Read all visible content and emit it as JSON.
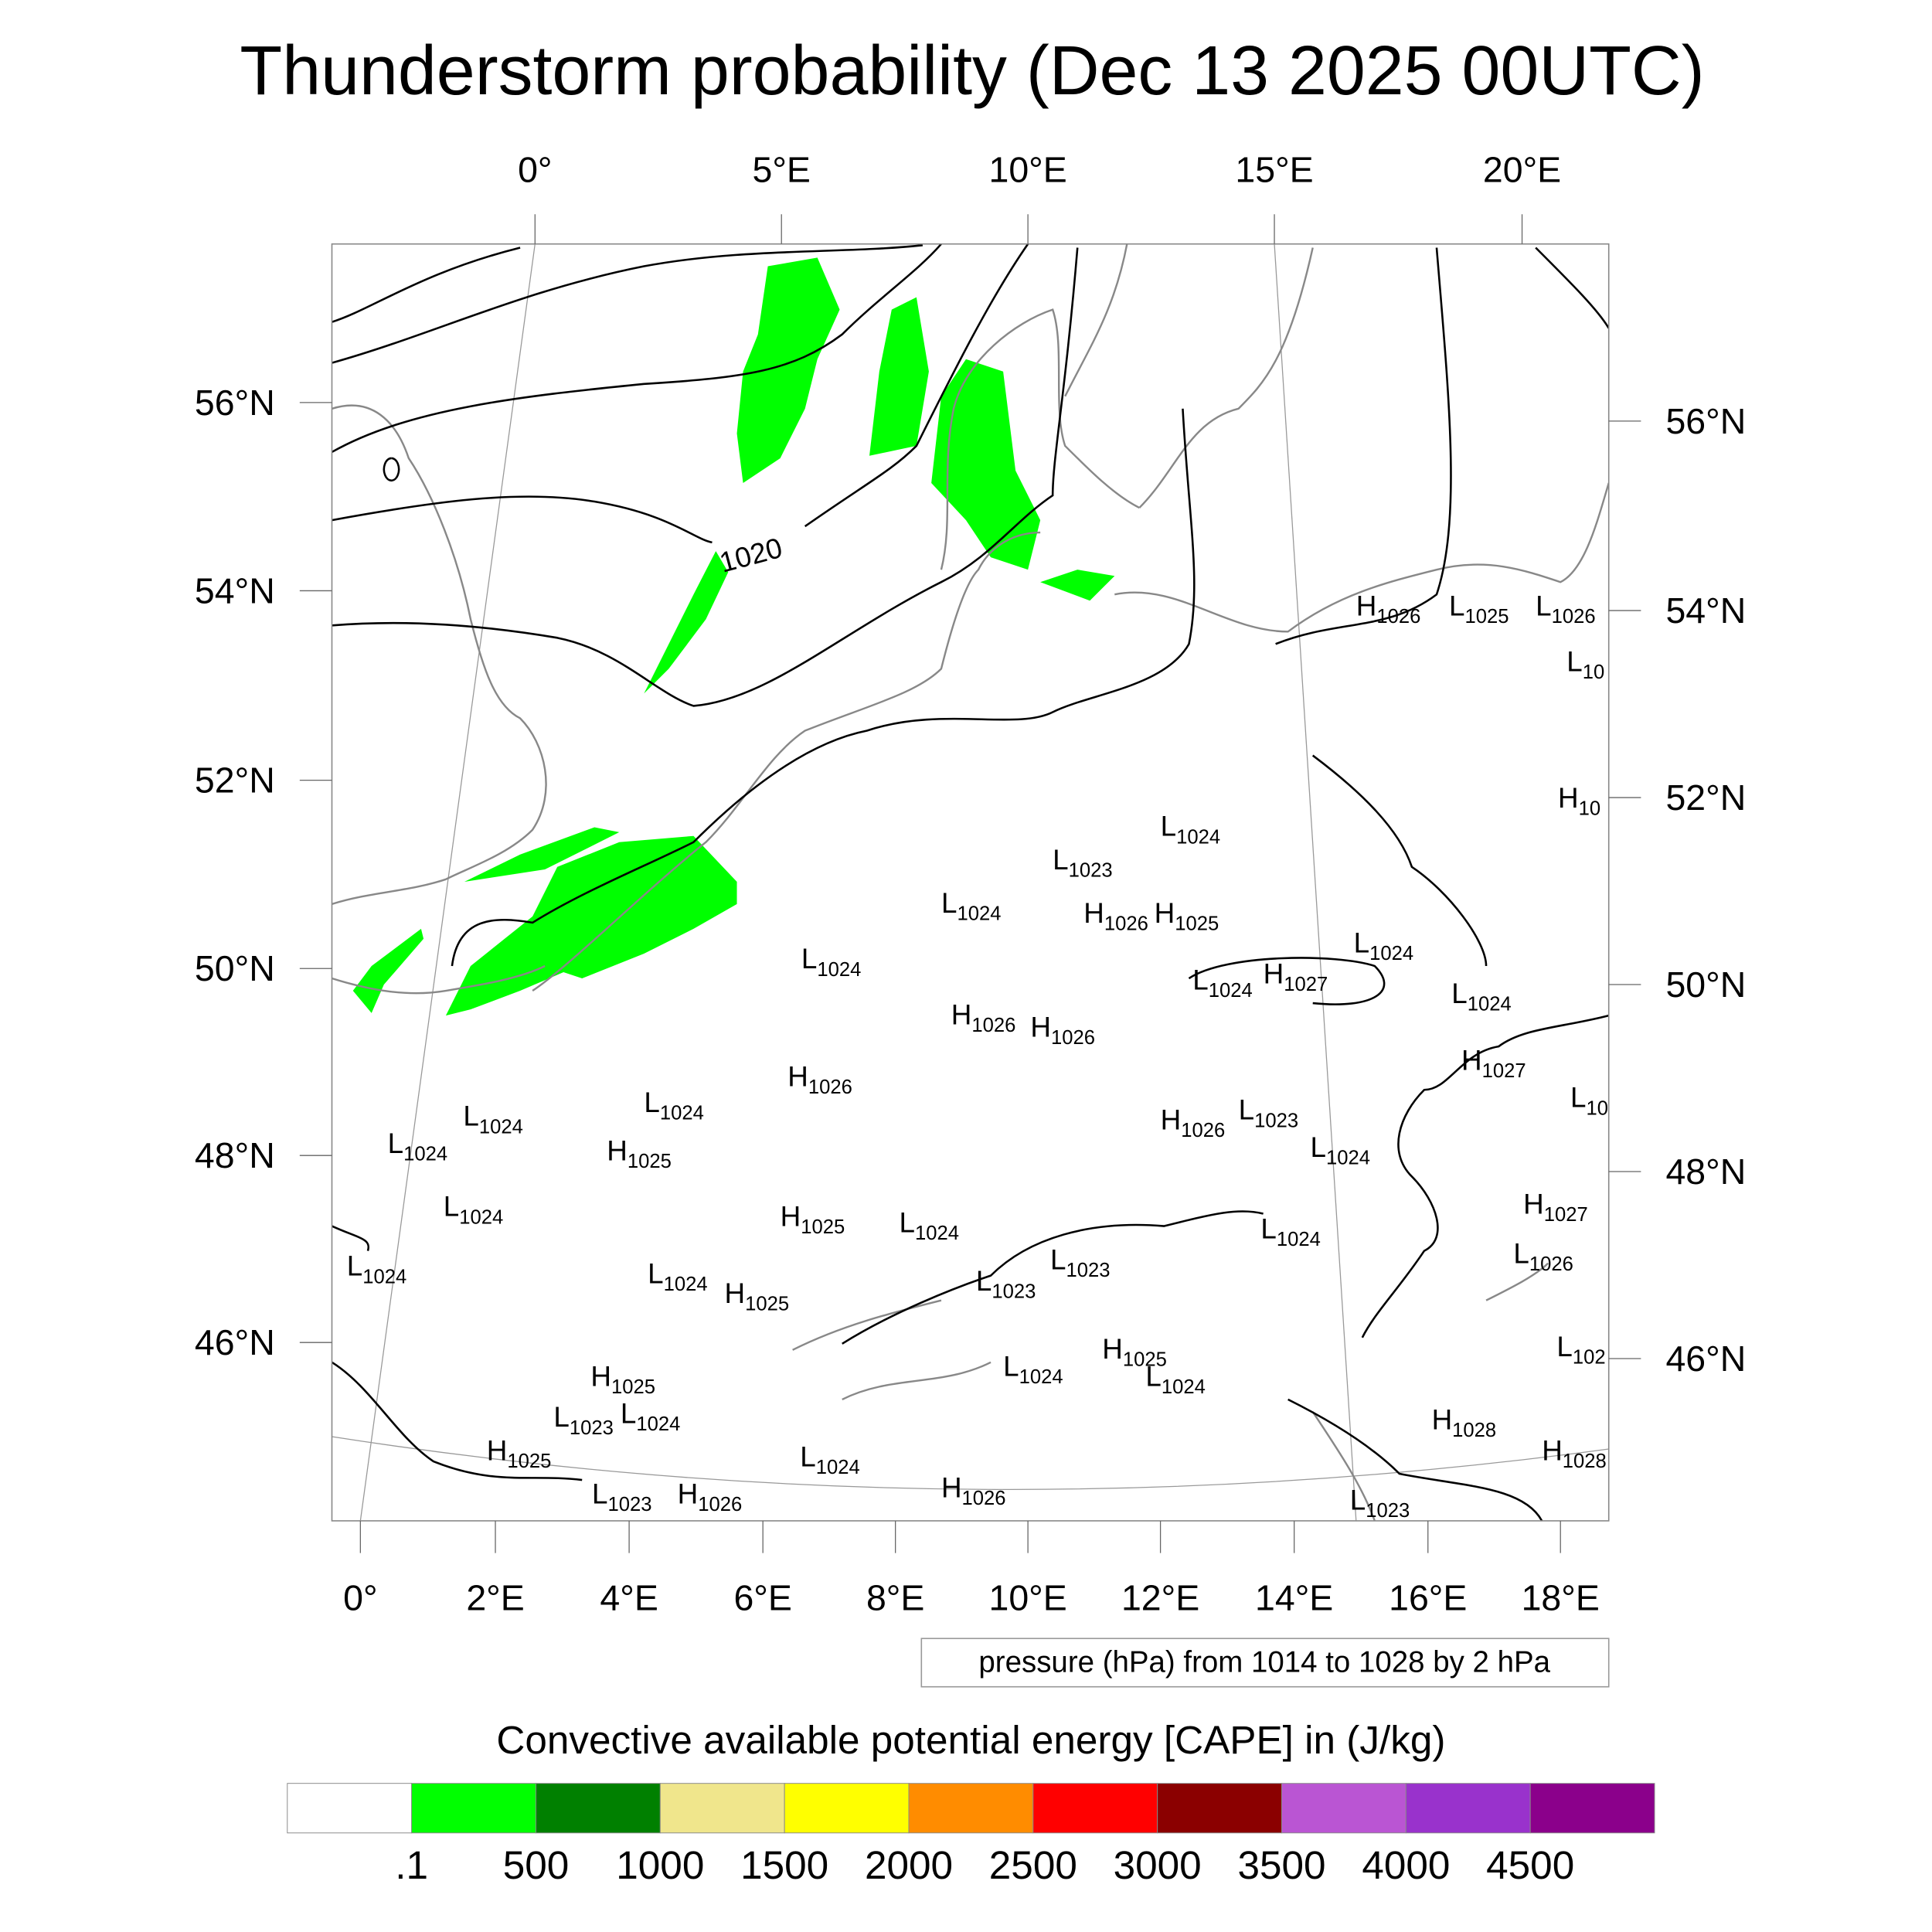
{
  "title": "Thunderstorm probability (Dec 13 2025 00UTC)",
  "axes": {
    "top_lon_labels": [
      "0°",
      "5°E",
      "10°E",
      "15°E",
      "20°E"
    ],
    "left_lat_labels": [
      "56°N",
      "54°N",
      "52°N",
      "50°N",
      "48°N",
      "46°N"
    ],
    "right_lat_labels": [
      "56°N",
      "54°N",
      "52°N",
      "50°N",
      "48°N",
      "46°N"
    ],
    "bottom_lon_labels": [
      "0°",
      "2°E",
      "4°E",
      "6°E",
      "8°E",
      "10°E",
      "12°E",
      "14°E",
      "16°E",
      "18°E"
    ]
  },
  "contour_label": "1020",
  "pressure_legend": "pressure (hPa) from 1014 to 1028 by 2 hPa",
  "colorbar": {
    "title": "Convective available potential energy [CAPE] in (J/kg)",
    "colors": [
      "#ffffff",
      "#00ff00",
      "#008000",
      "#f0e68c",
      "#ffff00",
      "#ff8c00",
      "#ff0000",
      "#8b0000",
      "#ba55d3",
      "#9932cc",
      "#8b008b"
    ],
    "labels": [
      ".1",
      "500",
      "1000",
      "1500",
      "2000",
      "2500",
      "3000",
      "3500",
      "4000",
      "4500"
    ]
  },
  "pressure_centers": [
    {
      "t": "H",
      "v": "1026"
    },
    {
      "t": "L",
      "v": "1025"
    },
    {
      "t": "L",
      "v": "1026"
    },
    {
      "t": "L",
      "v": "10"
    },
    {
      "t": "H",
      "v": "10"
    },
    {
      "t": "L",
      "v": "1024"
    },
    {
      "t": "L",
      "v": "1023"
    },
    {
      "t": "L",
      "v": "1024"
    },
    {
      "t": "H",
      "v": "1026"
    },
    {
      "t": "H",
      "v": "1025"
    },
    {
      "t": "L",
      "v": "1024"
    },
    {
      "t": "L",
      "v": "1024"
    },
    {
      "t": "L",
      "v": "1024"
    },
    {
      "t": "H",
      "v": "1027"
    },
    {
      "t": "L",
      "v": "1024"
    },
    {
      "t": "H",
      "v": "1026"
    },
    {
      "t": "H",
      "v": "1026"
    },
    {
      "t": "H",
      "v": "1027"
    },
    {
      "t": "H",
      "v": "1026"
    },
    {
      "t": "L",
      "v": "1024"
    },
    {
      "t": "L",
      "v": "1024"
    },
    {
      "t": "L",
      "v": "10"
    },
    {
      "t": "H",
      "v": "1026"
    },
    {
      "t": "L",
      "v": "1023"
    },
    {
      "t": "L",
      "v": "1024"
    },
    {
      "t": "H",
      "v": "1025"
    },
    {
      "t": "L",
      "v": "1024"
    },
    {
      "t": "L",
      "v": "1024"
    },
    {
      "t": "H",
      "v": "1027"
    },
    {
      "t": "H",
      "v": "1025"
    },
    {
      "t": "L",
      "v": "1024"
    },
    {
      "t": "L",
      "v": "1024"
    },
    {
      "t": "L",
      "v": "1026"
    },
    {
      "t": "L",
      "v": "1024"
    },
    {
      "t": "L",
      "v": "1023"
    },
    {
      "t": "L",
      "v": "1023"
    },
    {
      "t": "L",
      "v": "1024"
    },
    {
      "t": "H",
      "v": "1025"
    },
    {
      "t": "L",
      "v": "102"
    },
    {
      "t": "H",
      "v": "1025"
    },
    {
      "t": "H",
      "v": "1025"
    },
    {
      "t": "L",
      "v": "1024"
    },
    {
      "t": "L",
      "v": "1024"
    },
    {
      "t": "L",
      "v": "1023"
    },
    {
      "t": "L",
      "v": "1024"
    },
    {
      "t": "H",
      "v": "1028"
    },
    {
      "t": "H",
      "v": "1025"
    },
    {
      "t": "H",
      "v": "1028"
    },
    {
      "t": "L",
      "v": "1024"
    },
    {
      "t": "L",
      "v": "1023"
    },
    {
      "t": "H",
      "v": "1026"
    },
    {
      "t": "H",
      "v": "1026"
    },
    {
      "t": "L",
      "v": "1023"
    }
  ]
}
